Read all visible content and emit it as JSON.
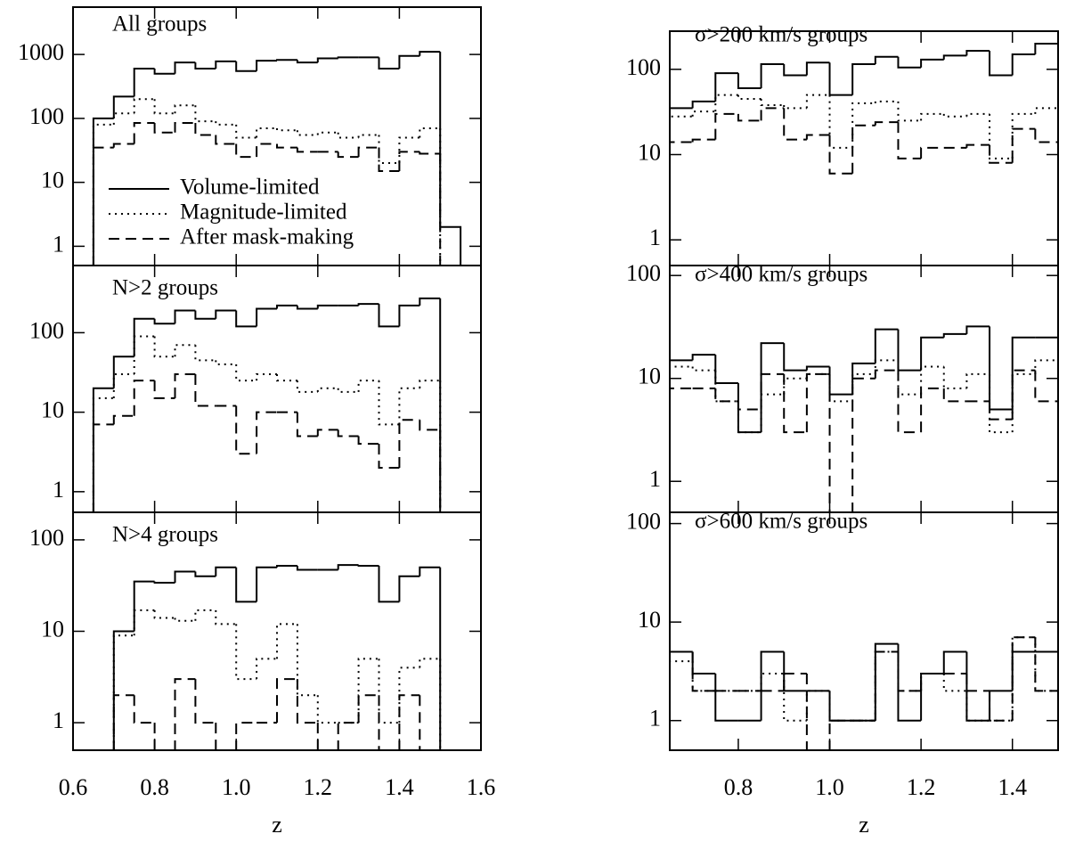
{
  "chart_data": [
    {
      "type": "histogram",
      "title": "All groups",
      "log_y": true,
      "legend": "lower left",
      "bins": [
        0.65,
        0.7,
        0.75,
        0.8,
        0.85,
        0.9,
        0.95,
        1.0,
        1.05,
        1.1,
        1.15,
        1.2,
        1.25,
        1.3,
        1.35,
        1.4,
        1.45,
        1.5,
        1.55
      ],
      "xlim": [
        0.6,
        1.6
      ],
      "ylim": [
        0.5,
        5500
      ],
      "yticks": [
        1,
        10,
        100,
        1000
      ],
      "series": [
        {
          "name": "Volume-limited",
          "color": "#000000",
          "linestyle": "solid",
          "values": [
            100,
            220,
            600,
            500,
            750,
            600,
            780,
            550,
            800,
            820,
            750,
            870,
            900,
            900,
            600,
            950,
            1100,
            2
          ]
        },
        {
          "name": "Magnitude-limited",
          "color": "#000000",
          "linestyle": "dotted",
          "values": [
            80,
            120,
            200,
            120,
            160,
            90,
            80,
            50,
            70,
            65,
            55,
            60,
            50,
            55,
            20,
            50,
            70,
            0
          ]
        },
        {
          "name": "After mask-making",
          "color": "#000000",
          "linestyle": "dashed",
          "values": [
            35,
            40,
            85,
            60,
            85,
            55,
            40,
            25,
            40,
            35,
            30,
            30,
            25,
            35,
            15,
            30,
            28,
            0
          ]
        }
      ]
    },
    {
      "type": "histogram",
      "title": "N>2 groups",
      "log_y": true,
      "bins": [
        0.65,
        0.7,
        0.75,
        0.8,
        0.85,
        0.9,
        0.95,
        1.0,
        1.05,
        1.1,
        1.15,
        1.2,
        1.25,
        1.3,
        1.35,
        1.4,
        1.45,
        1.5,
        1.55
      ],
      "xlim": [
        0.6,
        1.6
      ],
      "ylim": [
        0.55,
        700
      ],
      "yticks": [
        1,
        10,
        100
      ],
      "series": [
        {
          "color": "#000000",
          "linestyle": "solid",
          "values": [
            20,
            50,
            150,
            130,
            190,
            150,
            190,
            120,
            200,
            220,
            200,
            220,
            220,
            230,
            120,
            220,
            270,
            0
          ]
        },
        {
          "color": "#000000",
          "linestyle": "dotted",
          "values": [
            15,
            30,
            90,
            50,
            70,
            45,
            40,
            25,
            30,
            25,
            18,
            20,
            18,
            25,
            7,
            20,
            25,
            0
          ]
        },
        {
          "color": "#000000",
          "linestyle": "dashed",
          "values": [
            7,
            9,
            25,
            15,
            30,
            12,
            12,
            3,
            10,
            10,
            5,
            6,
            5,
            4,
            2,
            8,
            6,
            0
          ]
        }
      ]
    },
    {
      "type": "histogram",
      "title": "N>4 groups",
      "log_y": true,
      "xlabel": "z",
      "bins": [
        0.65,
        0.7,
        0.75,
        0.8,
        0.85,
        0.9,
        0.95,
        1.0,
        1.05,
        1.1,
        1.15,
        1.2,
        1.25,
        1.3,
        1.35,
        1.4,
        1.45,
        1.5,
        1.55
      ],
      "xlim": [
        0.6,
        1.6
      ],
      "ylim": [
        0.5,
        200
      ],
      "yticks": [
        1,
        10,
        100
      ],
      "xticks": [
        0.6,
        0.8,
        {
          "value": 1,
          "label": "1.0"
        },
        1.2,
        1.4,
        1.6
      ],
      "series": [
        {
          "color": "#000000",
          "linestyle": "solid",
          "values": [
            0,
            10,
            35,
            34,
            45,
            40,
            50,
            21,
            50,
            52,
            47,
            47,
            53,
            52,
            21,
            40,
            50,
            0
          ]
        },
        {
          "color": "#000000",
          "linestyle": "dotted",
          "values": [
            0,
            9,
            17,
            14,
            13,
            17,
            12,
            3,
            5,
            12,
            2,
            1,
            1,
            5,
            1,
            4,
            5,
            0
          ]
        },
        {
          "color": "#000000",
          "linestyle": "dashed",
          "values": [
            0,
            2,
            1,
            0,
            3,
            1,
            0,
            1,
            1,
            3,
            1,
            0,
            1,
            2,
            0,
            2,
            0,
            0
          ]
        }
      ]
    },
    {
      "type": "histogram",
      "title": "σ>200 km/s groups",
      "log_y": true,
      "bins": [
        0.65,
        0.7,
        0.75,
        0.8,
        0.85,
        0.9,
        0.95,
        1.0,
        1.05,
        1.1,
        1.15,
        1.2,
        1.25,
        1.3,
        1.35,
        1.4,
        1.45,
        1.5
      ],
      "xlim": [
        0.65,
        1.5
      ],
      "ylim": [
        0.5,
        280
      ],
      "yticks": [
        1,
        10,
        100
      ],
      "series": [
        {
          "color": "#000000",
          "linestyle": "solid",
          "values": [
            35,
            42,
            90,
            60,
            115,
            85,
            120,
            50,
            115,
            140,
            105,
            130,
            145,
            165,
            85,
            150,
            200
          ]
        },
        {
          "color": "#000000",
          "linestyle": "dotted",
          "values": [
            28,
            32,
            50,
            45,
            38,
            35,
            50,
            12,
            40,
            42,
            25,
            30,
            28,
            30,
            9,
            30,
            35
          ]
        },
        {
          "color": "#000000",
          "linestyle": "dashed",
          "values": [
            14,
            15,
            30,
            25,
            35,
            15,
            17,
            6,
            22,
            24,
            9,
            12,
            12,
            13,
            8,
            20,
            14
          ]
        }
      ]
    },
    {
      "type": "histogram",
      "title": "σ>400 km/s groups",
      "log_y": true,
      "bins": [
        0.65,
        0.7,
        0.75,
        0.8,
        0.85,
        0.9,
        0.95,
        1.0,
        1.05,
        1.1,
        1.15,
        1.2,
        1.25,
        1.3,
        1.35,
        1.4,
        1.45,
        1.5
      ],
      "xlim": [
        0.65,
        1.5
      ],
      "ylim": [
        0.5,
        125
      ],
      "yticks": [
        1,
        10,
        100
      ],
      "series": [
        {
          "color": "#000000",
          "linestyle": "solid",
          "values": [
            15,
            17,
            9,
            3,
            22,
            12,
            13,
            7,
            14,
            30,
            12,
            25,
            27,
            32,
            5,
            25,
            25
          ]
        },
        {
          "color": "#000000",
          "linestyle": "dotted",
          "values": [
            13,
            12,
            6,
            3,
            7,
            10,
            11,
            6,
            11,
            15,
            7,
            13,
            8,
            11,
            3,
            11,
            15
          ]
        },
        {
          "color": "#000000",
          "linestyle": "dashed",
          "values": [
            8,
            8,
            6,
            5,
            11,
            3,
            11,
            0,
            10,
            12,
            3,
            8,
            6,
            6,
            4,
            12,
            6
          ]
        }
      ]
    },
    {
      "type": "histogram",
      "title": "σ>600 km/s groups",
      "log_y": true,
      "xlabel": "z",
      "bins": [
        0.65,
        0.7,
        0.75,
        0.8,
        0.85,
        0.9,
        0.95,
        1.0,
        1.05,
        1.1,
        1.15,
        1.2,
        1.25,
        1.3,
        1.35,
        1.4,
        1.45,
        1.5
      ],
      "xlim": [
        0.65,
        1.5
      ],
      "ylim": [
        0.5,
        130
      ],
      "yticks": [
        1,
        10,
        100
      ],
      "xticks": [
        0.8,
        {
          "value": 1,
          "label": "1.0"
        },
        1.2,
        1.4
      ],
      "series": [
        {
          "color": "#000000",
          "linestyle": "solid",
          "values": [
            5,
            3,
            1,
            1,
            5,
            2,
            2,
            1,
            1,
            6,
            1,
            3,
            5,
            1,
            2,
            5,
            5
          ]
        },
        {
          "color": "#000000",
          "linestyle": "dotted",
          "values": [
            4,
            2,
            2,
            2,
            3,
            1,
            2,
            1,
            1,
            5,
            2,
            3,
            2,
            1,
            1,
            7,
            2
          ]
        },
        {
          "color": "#000000",
          "linestyle": "dashed",
          "values": [
            5,
            2,
            2,
            2,
            2,
            3,
            0,
            1,
            1,
            5,
            2,
            3,
            3,
            2,
            1,
            7,
            2
          ]
        }
      ]
    }
  ]
}
